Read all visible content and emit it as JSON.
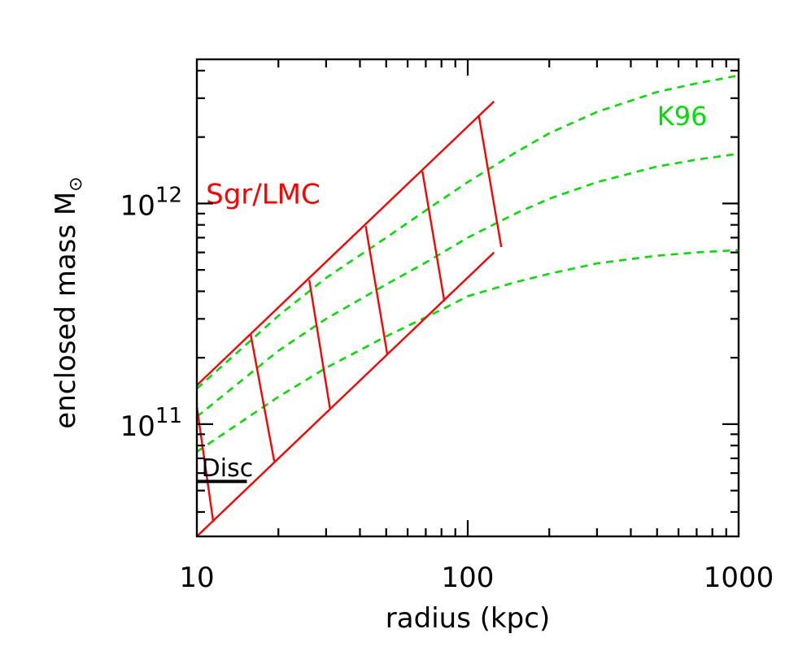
{
  "chart_data": {
    "type": "line",
    "xlabel": "radius (kpc)",
    "ylabel": "enclosed mass M",
    "ylabel_symbol": "⊙",
    "x_scale": "log",
    "y_scale": "log",
    "xlim": [
      10,
      1000
    ],
    "ylim": [
      31000000000,
      4500000000000
    ],
    "x_ticks": [
      {
        "value": 10,
        "label": "10"
      },
      {
        "value": 100,
        "label": "100"
      },
      {
        "value": 1000,
        "label": "1000"
      }
    ],
    "y_ticks": [
      {
        "value": 100000000000,
        "base": "10",
        "exp": "11"
      },
      {
        "value": 1000000000000,
        "base": "10",
        "exp": "12"
      }
    ],
    "grid": false,
    "colors": {
      "axes": "#000000",
      "sgr_lmc": "#ff0000",
      "k96": "#00e000",
      "disc": "#000000"
    },
    "series": [
      {
        "style": "dashed",
        "color": "#00e000",
        "x": [
          10,
          20,
          30,
          50,
          70,
          100,
          150,
          200,
          300,
          500,
          700,
          1000
        ],
        "y": [
          145000000000,
          310000000000,
          460000000000,
          700000000000,
          930000000000,
          1250000000000,
          1700000000000,
          2080000000000,
          2600000000000,
          3200000000000,
          3500000000000,
          3800000000000
        ]
      },
      {
        "style": "dashed",
        "color": "#00e000",
        "x": [
          10,
          20,
          30,
          50,
          70,
          100,
          150,
          200,
          300,
          500,
          700,
          1000
        ],
        "y": [
          108000000000,
          215000000000,
          300000000000,
          430000000000,
          540000000000,
          700000000000,
          900000000000,
          1050000000000,
          1250000000000,
          1470000000000,
          1580000000000,
          1680000000000
        ]
      },
      {
        "style": "dashed",
        "color": "#00e000",
        "x": [
          10,
          20,
          30,
          50,
          70,
          80,
          100,
          150,
          200,
          300,
          500,
          700,
          1000
        ],
        "y": [
          75000000000,
          133000000000,
          180000000000,
          250000000000,
          305000000000,
          330000000000,
          380000000000,
          440000000000,
          480000000000,
          535000000000,
          580000000000,
          600000000000,
          615000000000
        ]
      }
    ],
    "band": {
      "color": "#ff0000",
      "upper": {
        "x": [
          10,
          125
        ],
        "y": [
          150000000000,
          2900000000000
        ]
      },
      "lower": {
        "x": [
          10,
          125
        ],
        "y": [
          31000000000,
          600000000000
        ]
      },
      "cross_lines": [
        {
          "x": [
            10,
            11.5
          ],
          "y": [
            120000000000,
            36000000000
          ]
        },
        {
          "x": [
            15.8,
            19.3
          ],
          "y": [
            255000000000,
            68000000000
          ]
        },
        {
          "x": [
            26,
            31
          ],
          "y": [
            450000000000,
            118000000000
          ]
        },
        {
          "x": [
            42,
            50.5
          ],
          "y": [
            790000000000,
            206000000000
          ]
        },
        {
          "x": [
            68,
            82
          ],
          "y": [
            1400000000000,
            360000000000
          ]
        },
        {
          "x": [
            110,
            133
          ],
          "y": [
            2480000000000,
            635000000000
          ]
        }
      ]
    },
    "disc_line": {
      "x": [
        10,
        15.3
      ],
      "y": [
        55000000000,
        55000000000
      ]
    },
    "annotations": [
      {
        "text": "Sgr/LMC",
        "x": 10.8,
        "y": 1000000000000,
        "color": "#ff0000"
      },
      {
        "text": "K96",
        "x": 500,
        "y": 2260000000000,
        "color": "#00e000"
      },
      {
        "text": "Disc",
        "x": 10.4,
        "y": 58000000000,
        "color": "#000000"
      }
    ]
  }
}
